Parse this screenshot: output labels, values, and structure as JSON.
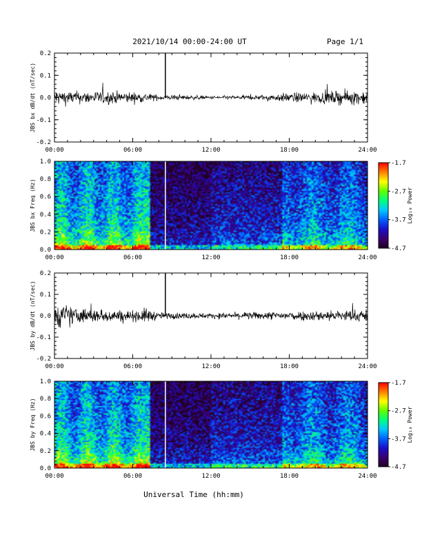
{
  "header": {
    "title": "2021/10/14  00:00-24:00 UT",
    "page": "Page 1/1"
  },
  "footer": {
    "xlabel": "Universal Time (hh:mm)"
  },
  "chart_data": [
    {
      "type": "line",
      "ylabel": "JBS bx dB/dt (nT/sec)",
      "ylim": [
        -0.2,
        0.2
      ],
      "yticks": [
        "0.2",
        "0.1",
        "0.0",
        "-0.1",
        "-0.2"
      ],
      "xlim": [
        0,
        24
      ],
      "xticks": [
        "00:00",
        "06:00",
        "12:00",
        "18:00",
        "24:00"
      ],
      "spike": {
        "time": "08:30",
        "value": 0.2
      },
      "noise_envelope": {
        "times": [
          "00:00",
          "02:00",
          "04:00",
          "06:00",
          "07:00",
          "08:00",
          "10:00",
          "12:00",
          "14:00",
          "16:00",
          "18:00",
          "20:00",
          "22:00",
          "24:00"
        ],
        "amplitude": [
          0.06,
          0.045,
          0.05,
          0.04,
          0.035,
          0.02,
          0.018,
          0.012,
          0.015,
          0.02,
          0.035,
          0.04,
          0.05,
          0.055
        ]
      }
    },
    {
      "type": "heatmap",
      "ylabel": "JBS bx Freq (Hz)",
      "ylim": [
        0.0,
        1.0
      ],
      "yticks": [
        "1.0",
        "0.8",
        "0.6",
        "0.4",
        "0.2",
        "0.0"
      ],
      "xlim": [
        0,
        24
      ],
      "xticks": [
        "00:00",
        "06:00",
        "12:00",
        "18:00",
        "24:00"
      ],
      "colorbar": {
        "label": "Log₁₀ Power",
        "range": [
          -4.7,
          -1.7
        ],
        "ticks": [
          "-1.7",
          "-2.7",
          "-3.7",
          "-4.7"
        ]
      },
      "gap_time": "08:30"
    },
    {
      "type": "line",
      "ylabel": "JBS by dB/dt (nT/sec)",
      "ylim": [
        -0.2,
        0.2
      ],
      "yticks": [
        "0.2",
        "0.1",
        "0.0",
        "-0.1",
        "-0.2"
      ],
      "xlim": [
        0,
        24
      ],
      "xticks": [
        "00:00",
        "06:00",
        "12:00",
        "18:00",
        "24:00"
      ],
      "spike": {
        "time": "08:30",
        "value": 0.2
      },
      "noise_envelope": {
        "times": [
          "00:00",
          "01:00",
          "02:00",
          "04:00",
          "06:00",
          "07:00",
          "08:00",
          "10:00",
          "12:00",
          "14:00",
          "16:00",
          "18:00",
          "20:00",
          "22:00",
          "24:00"
        ],
        "amplitude": [
          0.1,
          0.08,
          0.06,
          0.05,
          0.04,
          0.06,
          0.025,
          0.025,
          0.02,
          0.025,
          0.03,
          0.035,
          0.04,
          0.045,
          0.05
        ]
      }
    },
    {
      "type": "heatmap",
      "ylabel": "JBS by Freq (Hz)",
      "ylim": [
        0.0,
        1.0
      ],
      "yticks": [
        "1.0",
        "0.8",
        "0.6",
        "0.4",
        "0.2",
        "0.0"
      ],
      "xlim": [
        0,
        24
      ],
      "xticks": [
        "00:00",
        "06:00",
        "12:00",
        "18:00",
        "24:00"
      ],
      "colorbar": {
        "label": "Log₁₀ Power",
        "range": [
          -4.7,
          -1.7
        ],
        "ticks": [
          "-1.7",
          "-2.7",
          "-3.7",
          "-4.7"
        ]
      },
      "gap_time": "08:30"
    }
  ],
  "colors": {
    "trace": "#000000",
    "colormap": [
      "#200020",
      "#3a0070",
      "#1a10c8",
      "#0060ff",
      "#00c8ff",
      "#00ff80",
      "#60ff00",
      "#ffff00",
      "#ff8000",
      "#ff0000"
    ]
  }
}
